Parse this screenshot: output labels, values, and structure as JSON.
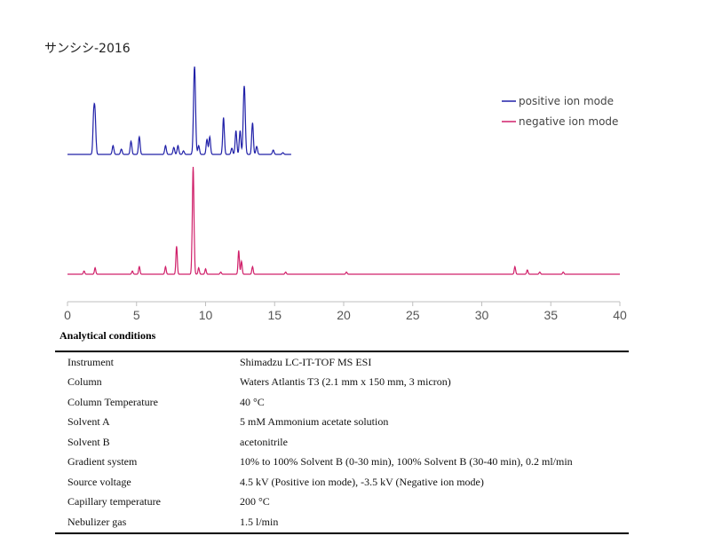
{
  "title": "サンシシ-2016",
  "chart_data": {
    "type": "line",
    "title": "サンシシ-2016",
    "xlim": [
      0,
      40
    ],
    "x_ticks": [
      0,
      5,
      10,
      15,
      20,
      25,
      30,
      35,
      40
    ],
    "legend_position": "top-right",
    "grid": false,
    "series": [
      {
        "name": "positive ion mode",
        "color": "#2020a8",
        "x_end": 16.2,
        "peaks": [
          {
            "x": 1.9,
            "h": 0.42
          },
          {
            "x": 2.0,
            "h": 0.4
          },
          {
            "x": 3.3,
            "h": 0.1
          },
          {
            "x": 3.9,
            "h": 0.06
          },
          {
            "x": 4.6,
            "h": 0.15
          },
          {
            "x": 5.2,
            "h": 0.2
          },
          {
            "x": 7.1,
            "h": 0.1
          },
          {
            "x": 7.7,
            "h": 0.08
          },
          {
            "x": 8.0,
            "h": 0.1
          },
          {
            "x": 8.4,
            "h": 0.04
          },
          {
            "x": 9.2,
            "h": 1.0
          },
          {
            "x": 9.5,
            "h": 0.1
          },
          {
            "x": 10.1,
            "h": 0.17
          },
          {
            "x": 10.3,
            "h": 0.2
          },
          {
            "x": 11.3,
            "h": 0.42
          },
          {
            "x": 11.9,
            "h": 0.07
          },
          {
            "x": 12.2,
            "h": 0.27
          },
          {
            "x": 12.5,
            "h": 0.27
          },
          {
            "x": 12.8,
            "h": 0.78
          },
          {
            "x": 13.4,
            "h": 0.36
          },
          {
            "x": 13.7,
            "h": 0.09
          },
          {
            "x": 14.9,
            "h": 0.05
          },
          {
            "x": 15.6,
            "h": 0.02
          }
        ]
      },
      {
        "name": "negative ion mode",
        "color": "#d0206a",
        "x_end": 40,
        "peaks": [
          {
            "x": 1.2,
            "h": 0.03
          },
          {
            "x": 2.0,
            "h": 0.06
          },
          {
            "x": 4.7,
            "h": 0.03
          },
          {
            "x": 5.2,
            "h": 0.07
          },
          {
            "x": 7.1,
            "h": 0.07
          },
          {
            "x": 7.9,
            "h": 0.26
          },
          {
            "x": 9.1,
            "h": 1.0
          },
          {
            "x": 9.5,
            "h": 0.06
          },
          {
            "x": 10.0,
            "h": 0.05
          },
          {
            "x": 11.1,
            "h": 0.02
          },
          {
            "x": 12.4,
            "h": 0.22
          },
          {
            "x": 12.6,
            "h": 0.12
          },
          {
            "x": 13.4,
            "h": 0.07
          },
          {
            "x": 15.8,
            "h": 0.02
          },
          {
            "x": 20.2,
            "h": 0.02
          },
          {
            "x": 32.4,
            "h": 0.07
          },
          {
            "x": 33.3,
            "h": 0.04
          },
          {
            "x": 34.2,
            "h": 0.02
          },
          {
            "x": 35.9,
            "h": 0.02
          }
        ]
      }
    ]
  },
  "conditions": {
    "heading": "Analytical conditions",
    "rows": [
      {
        "label": "Instrument",
        "value": "Shimadzu LC-IT-TOF MS ESI"
      },
      {
        "label": "Column",
        "value": "Waters Atlantis T3 (2.1 mm x 150 mm, 3 micron)"
      },
      {
        "label": "Column Temperature",
        "value": "40 °C"
      },
      {
        "label": "Solvent A",
        "value": "5 mM Ammonium acetate solution"
      },
      {
        "label": "Solvent B",
        "value": "acetonitrile"
      },
      {
        "label": "Gradient system",
        "value": "10% to 100% Solvent B (0-30 min), 100% Solvent B (30-40 min), 0.2 ml/min"
      },
      {
        "label": "Source voltage",
        "value": "4.5 kV (Positive ion mode), -3.5 kV (Negative ion mode)"
      },
      {
        "label": "Capillary temperature",
        "value": "200 °C"
      },
      {
        "label": "Nebulizer gas",
        "value": "1.5 l/min"
      }
    ]
  }
}
